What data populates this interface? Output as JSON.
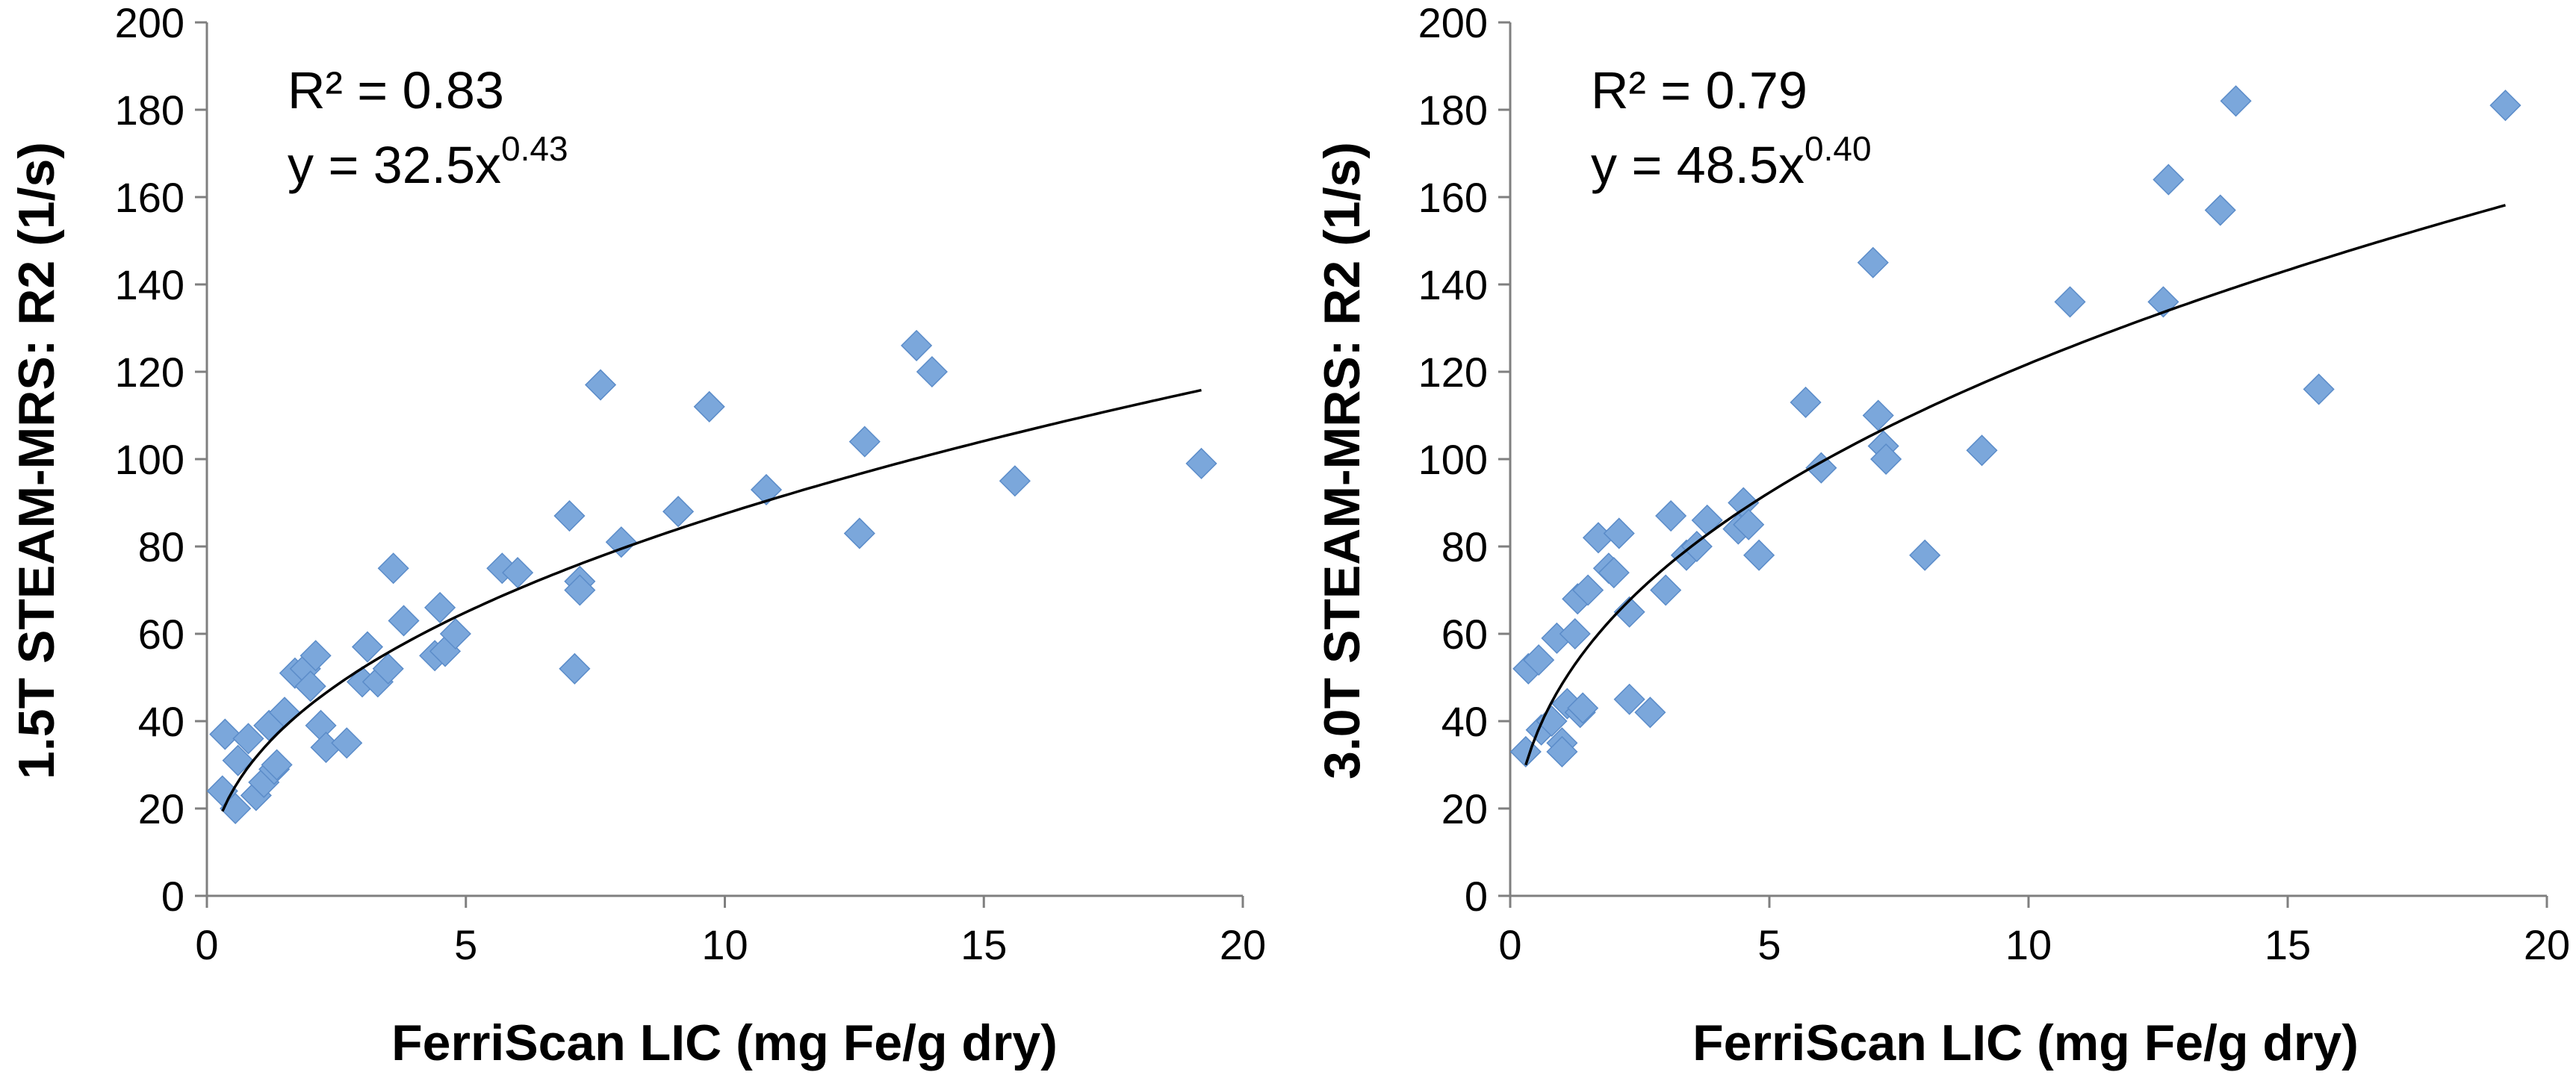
{
  "chart_data": [
    {
      "type": "scatter",
      "xlabel": "FerriScan LIC (mg Fe/g dry)",
      "ylabel": "1.5T STEAM-MRS: R2 (1/s)",
      "xlim": [
        0,
        20
      ],
      "ylim": [
        0,
        200
      ],
      "xticks": [
        "0",
        "5",
        "10",
        "15",
        "20"
      ],
      "yticks": [
        "0",
        "20",
        "40",
        "60",
        "80",
        "100",
        "120",
        "140",
        "160",
        "180",
        "200"
      ],
      "annotation": {
        "r2": "R² = 0.83",
        "eq_base": "y = 32.5x",
        "eq_exp": "0.43"
      },
      "fit": {
        "a": 32.5,
        "b": 0.43,
        "x_range": [
          0.3,
          19.2
        ]
      },
      "marker_color": "#7BA7DB",
      "points": [
        [
          0.3,
          24
        ],
        [
          0.35,
          37
        ],
        [
          0.55,
          20
        ],
        [
          0.6,
          31
        ],
        [
          0.8,
          36
        ],
        [
          0.95,
          23
        ],
        [
          1.1,
          26
        ],
        [
          1.2,
          39
        ],
        [
          1.3,
          29
        ],
        [
          1.35,
          30
        ],
        [
          1.5,
          42
        ],
        [
          1.7,
          51
        ],
        [
          1.9,
          52
        ],
        [
          2.0,
          48
        ],
        [
          2.1,
          55
        ],
        [
          2.2,
          39
        ],
        [
          2.3,
          34
        ],
        [
          2.7,
          35
        ],
        [
          3.0,
          49
        ],
        [
          3.1,
          57
        ],
        [
          3.3,
          49
        ],
        [
          3.5,
          52
        ],
        [
          3.6,
          75
        ],
        [
          3.8,
          63
        ],
        [
          4.4,
          55
        ],
        [
          4.5,
          66
        ],
        [
          4.6,
          56
        ],
        [
          4.8,
          60
        ],
        [
          5.7,
          75
        ],
        [
          6.0,
          74
        ],
        [
          7.0,
          87
        ],
        [
          7.1,
          52
        ],
        [
          7.2,
          72
        ],
        [
          7.2,
          70
        ],
        [
          7.6,
          117
        ],
        [
          8.0,
          81
        ],
        [
          9.1,
          88
        ],
        [
          9.7,
          112
        ],
        [
          10.8,
          93
        ],
        [
          12.6,
          83
        ],
        [
          12.7,
          104
        ],
        [
          13.7,
          126
        ],
        [
          14.0,
          120
        ],
        [
          15.6,
          95
        ],
        [
          19.2,
          99
        ]
      ]
    },
    {
      "type": "scatter",
      "xlabel": "FerriScan LIC (mg Fe/g dry)",
      "ylabel": "3.0T STEAM-MRS: R2 (1/s)",
      "xlim": [
        0,
        20
      ],
      "ylim": [
        0,
        200
      ],
      "xticks": [
        "0",
        "5",
        "10",
        "15",
        "20"
      ],
      "yticks": [
        "0",
        "20",
        "40",
        "60",
        "80",
        "100",
        "120",
        "140",
        "160",
        "180",
        "200"
      ],
      "annotation": {
        "r2": "R² = 0.79",
        "eq_base": "y = 48.5x",
        "eq_exp": "0.40"
      },
      "fit": {
        "a": 48.5,
        "b": 0.4,
        "x_range": [
          0.3,
          19.2
        ]
      },
      "marker_color": "#7BA7DB",
      "points": [
        [
          0.3,
          33
        ],
        [
          0.35,
          52
        ],
        [
          0.55,
          54
        ],
        [
          0.6,
          38
        ],
        [
          0.8,
          40
        ],
        [
          0.9,
          59
        ],
        [
          1.0,
          35
        ],
        [
          1.0,
          33
        ],
        [
          1.1,
          44
        ],
        [
          1.25,
          60
        ],
        [
          1.3,
          68
        ],
        [
          1.35,
          42
        ],
        [
          1.4,
          43
        ],
        [
          1.5,
          70
        ],
        [
          1.7,
          82
        ],
        [
          1.9,
          75
        ],
        [
          2.0,
          74
        ],
        [
          2.1,
          83
        ],
        [
          2.3,
          65
        ],
        [
          2.3,
          45
        ],
        [
          2.7,
          42
        ],
        [
          3.0,
          70
        ],
        [
          3.1,
          87
        ],
        [
          3.4,
          78
        ],
        [
          3.6,
          80
        ],
        [
          3.8,
          86
        ],
        [
          4.4,
          84
        ],
        [
          4.5,
          90
        ],
        [
          4.6,
          85
        ],
        [
          4.8,
          78
        ],
        [
          5.7,
          113
        ],
        [
          6.0,
          98
        ],
        [
          7.0,
          145
        ],
        [
          7.1,
          110
        ],
        [
          7.2,
          103
        ],
        [
          7.25,
          100
        ],
        [
          8.0,
          78
        ],
        [
          9.1,
          102
        ],
        [
          10.8,
          136
        ],
        [
          12.6,
          136
        ],
        [
          12.7,
          164
        ],
        [
          13.7,
          157
        ],
        [
          14.0,
          182
        ],
        [
          15.6,
          116
        ],
        [
          19.2,
          181
        ]
      ]
    }
  ]
}
